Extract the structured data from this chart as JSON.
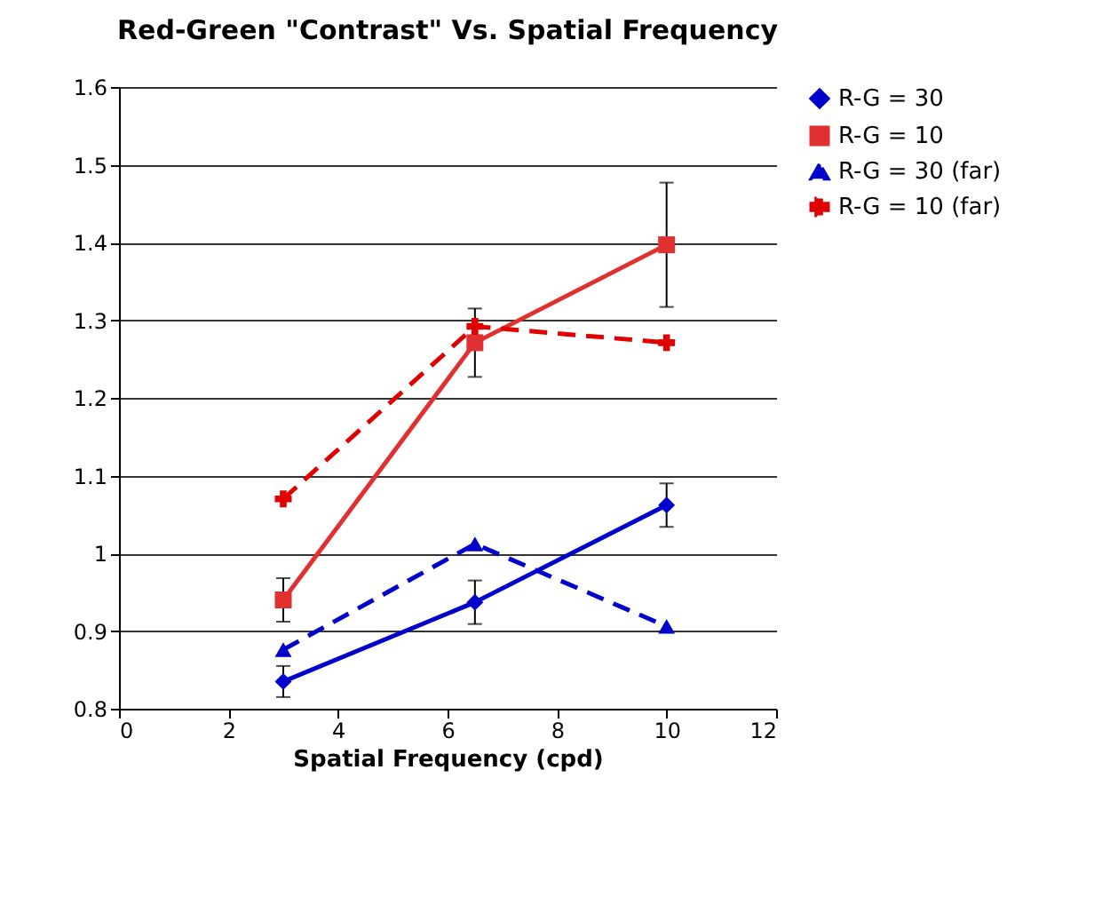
{
  "chart_data": {
    "type": "line",
    "title": "Red-Green \"Contrast\" Vs. Spatial Frequency",
    "xlabel": "Spatial Frequency (cpd)",
    "x": [
      3,
      6.5,
      10
    ],
    "series": [
      {
        "name": "R-G = 30",
        "color": "#0000cc",
        "marker": "diamond",
        "line_style": "solid",
        "values": [
          0.835,
          0.937,
          1.062
        ],
        "errors": [
          0.02,
          0.028,
          0.028
        ]
      },
      {
        "name": "R-G = 10",
        "color": "#e03030",
        "marker": "square",
        "line_style": "solid",
        "values": [
          0.94,
          1.271,
          1.397
        ],
        "errors": [
          0.028,
          0.044,
          0.08
        ]
      },
      {
        "name": "R-G = 30 (far)",
        "color": "#0000cc",
        "marker": "triangle",
        "line_style": "dashed",
        "values": [
          0.876,
          1.012,
          0.906
        ]
      },
      {
        "name": "R-G = 10 (far)",
        "color": "#e00000",
        "marker": "cross",
        "line_style": "dashed",
        "values": [
          1.07,
          1.292,
          1.271
        ]
      }
    ],
    "xlim": [
      0,
      12
    ],
    "xticks": [
      0,
      2,
      4,
      6,
      8,
      10,
      12
    ],
    "ylim": [
      0.8,
      1.6
    ],
    "yticks": [
      0.8,
      0.9,
      1,
      1.1,
      1.2,
      1.3,
      1.4,
      1.5,
      1.6
    ],
    "grid": "y",
    "legend": "right"
  }
}
